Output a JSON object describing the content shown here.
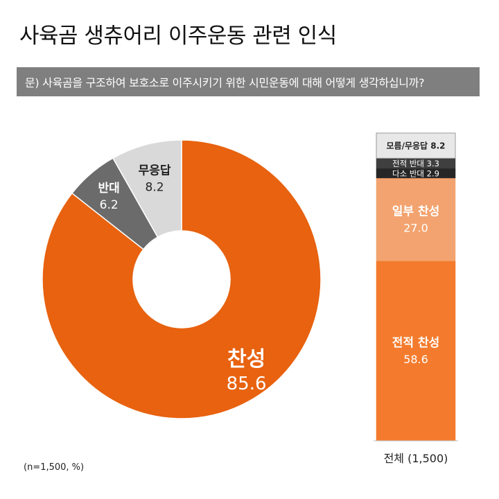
{
  "title": "사육곰 생츄어리 이주운동 관련 인식",
  "question": "문) 사육곰을 구조하여 보호소로 이주시키기 위한 시민운동에 대해 어떻게 생각하십니까?",
  "note": "(n=1,500, %)",
  "chart_data": [
    {
      "type": "pie",
      "donut": true,
      "categories": [
        "찬성",
        "반대",
        "무응답"
      ],
      "values": [
        85.6,
        6.2,
        8.2
      ],
      "colors": [
        "#e8620f",
        "#6b6b6b",
        "#d9d9d9"
      ]
    },
    {
      "type": "bar",
      "stacked": true,
      "categories": [
        "전체 (1,500)"
      ],
      "series": [
        {
          "name": "전적 찬성",
          "values": [
            58.6
          ],
          "color": "#f47b2d"
        },
        {
          "name": "일부 찬성",
          "values": [
            27.0
          ],
          "color": "#f3a36f"
        },
        {
          "name": "다소 반대",
          "values": [
            2.9
          ],
          "color": "#262626"
        },
        {
          "name": "전적 반대",
          "values": [
            3.3
          ],
          "color": "#3f3f3f"
        },
        {
          "name": "모름/무응답",
          "values": [
            8.2
          ],
          "color": "#e8e8e8"
        }
      ],
      "segment_labels": [
        "전적 찬성",
        "일부 찬성",
        "다소 반대",
        "전적 반대",
        "모름/무응답"
      ]
    }
  ]
}
